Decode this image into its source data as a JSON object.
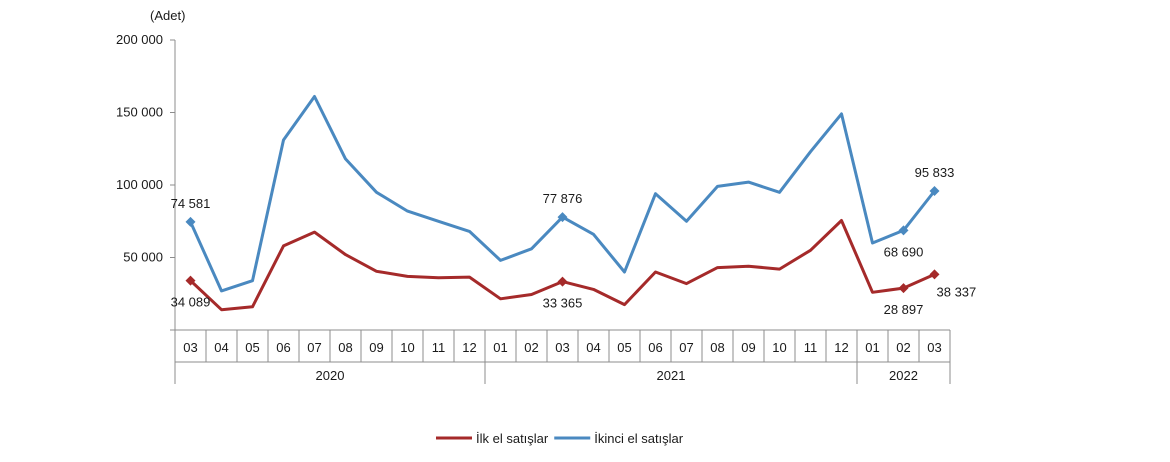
{
  "chart_data": {
    "type": "line",
    "unit_label": "(Adet)",
    "y_ticks": [
      "200 000",
      "150 000",
      "100 000",
      "50 000"
    ],
    "y_tick_values": [
      200000,
      150000,
      100000,
      50000
    ],
    "ylim": [
      0,
      200000
    ],
    "categories": [
      "03",
      "04",
      "05",
      "06",
      "07",
      "08",
      "09",
      "10",
      "11",
      "12",
      "01",
      "02",
      "03",
      "04",
      "05",
      "06",
      "07",
      "08",
      "09",
      "10",
      "11",
      "12",
      "01",
      "02",
      "03"
    ],
    "year_groups": [
      {
        "label": "2020",
        "start": 0,
        "end": 9
      },
      {
        "label": "2021",
        "start": 10,
        "end": 21
      },
      {
        "label": "2022",
        "start": 22,
        "end": 24
      }
    ],
    "series": [
      {
        "name": "İlk el satışlar",
        "color": "#a52a2a",
        "values": [
          34089,
          14000,
          16000,
          58000,
          67500,
          52000,
          40500,
          37000,
          36000,
          36500,
          21500,
          24500,
          33365,
          28000,
          17500,
          40000,
          32000,
          43000,
          44000,
          42000,
          55000,
          75500,
          26000,
          28897,
          38337
        ],
        "labels": [
          {
            "index": 0,
            "text": "34 089",
            "pos": "below"
          },
          {
            "index": 12,
            "text": "33 365",
            "pos": "below"
          },
          {
            "index": 23,
            "text": "28 897",
            "pos": "below"
          },
          {
            "index": 24,
            "text": "38 337",
            "pos": "below-right"
          }
        ]
      },
      {
        "name": "İkinci el satışlar",
        "color": "#4a89c0",
        "values": [
          74581,
          27000,
          34000,
          131000,
          161000,
          118000,
          95000,
          82000,
          75000,
          68000,
          48000,
          56000,
          77876,
          66000,
          40000,
          94000,
          75000,
          99000,
          102000,
          95000,
          123000,
          149000,
          60000,
          68690,
          95833
        ],
        "labels": [
          {
            "index": 0,
            "text": "74 581",
            "pos": "above"
          },
          {
            "index": 12,
            "text": "77 876",
            "pos": "above"
          },
          {
            "index": 23,
            "text": "68 690",
            "pos": "below"
          },
          {
            "index": 24,
            "text": "95 833",
            "pos": "above"
          }
        ]
      }
    ],
    "marker_indices": [
      0,
      12,
      23,
      24
    ],
    "legend_position": "bottom",
    "grid": false
  }
}
